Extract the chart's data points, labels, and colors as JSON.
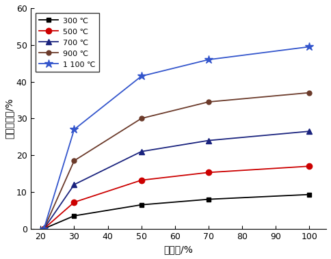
{
  "x": [
    21,
    30,
    50,
    70,
    100
  ],
  "series": [
    {
      "label": "300 ℃",
      "color": "#000000",
      "marker": "s",
      "markersize": 5,
      "values": [
        0,
        3.5,
        6.5,
        8.0,
        9.3
      ]
    },
    {
      "label": "500 ℃",
      "color": "#cc0000",
      "marker": "o",
      "markersize": 6,
      "values": [
        0,
        7.2,
        13.2,
        15.3,
        17.0
      ]
    },
    {
      "label": "700 ℃",
      "color": "#1a237e",
      "marker": "^",
      "markersize": 6,
      "values": [
        0,
        12.0,
        21.0,
        24.0,
        26.5
      ]
    },
    {
      "label": "900 ℃",
      "color": "#6b3a2a",
      "marker": "o",
      "markersize": 5,
      "values": [
        0,
        18.5,
        30.0,
        34.5,
        37.0
      ]
    },
    {
      "label": "1 100 ℃",
      "color": "#3355cc",
      "marker": "*",
      "markersize": 9,
      "values": [
        0,
        27.0,
        41.5,
        46.0,
        49.5
      ]
    }
  ],
  "xlabel": "富氧率/%",
  "ylabel": "燃料节约率/%",
  "xlim": [
    17,
    105
  ],
  "ylim": [
    0,
    60
  ],
  "xticks": [
    20,
    30,
    40,
    50,
    60,
    70,
    80,
    90,
    100
  ],
  "yticks": [
    0,
    10,
    20,
    30,
    40,
    50,
    60
  ],
  "figsize": [
    4.84,
    3.79
  ],
  "dpi": 100,
  "linewidth": 1.3
}
